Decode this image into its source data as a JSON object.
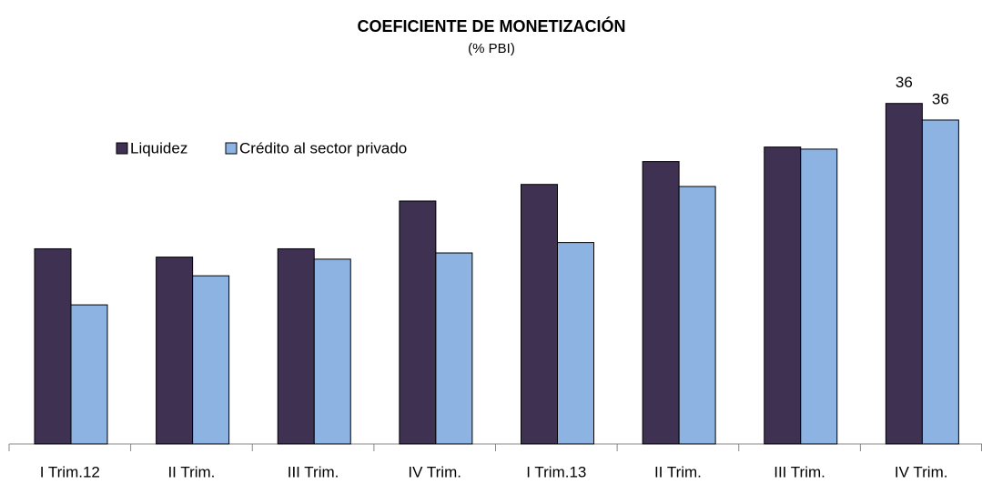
{
  "chart_data": {
    "type": "bar",
    "title": "COEFICIENTE DE MONETIZACIÓN",
    "subtitle": "(% PBI)",
    "categories": [
      "I Trim.12",
      "II Trim.",
      "III Trim.",
      "IV Trim.",
      "I Trim.13",
      "II Trim.",
      "III Trim.",
      "IV Trim."
    ],
    "series": [
      {
        "name": "Liquidez",
        "color": "#3f3151",
        "values": [
          29.4,
          29.0,
          29.4,
          31.7,
          32.5,
          33.6,
          34.3,
          36.4
        ],
        "value_labels": [
          null,
          null,
          null,
          null,
          null,
          null,
          null,
          "36"
        ]
      },
      {
        "name": "Crédito al sector privado",
        "color": "#8db3e2",
        "values": [
          26.7,
          28.1,
          28.9,
          29.2,
          29.7,
          32.4,
          34.2,
          35.6
        ],
        "value_labels": [
          null,
          null,
          null,
          null,
          null,
          null,
          null,
          "36"
        ]
      }
    ],
    "ylim": [
      20,
      37
    ],
    "legend": "top-left"
  }
}
